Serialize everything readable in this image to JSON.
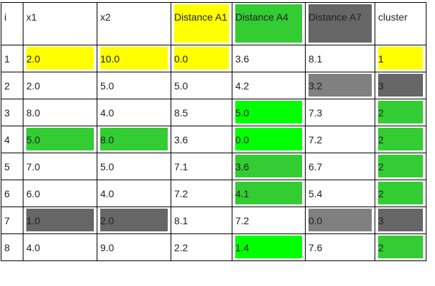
{
  "colors": {
    "yellow": "#ffff00",
    "green_bright": "#00ff00",
    "green_medium": "#33cc33",
    "gray_dark": "#666666",
    "gray_medium": "#808080",
    "white": "#ffffff"
  },
  "columns": [
    "i",
    "x1",
    "x2",
    "Distance A1",
    "Distance A4",
    "Distance A7",
    "cluster"
  ],
  "header_colors": [
    "white",
    "white",
    "white",
    "yellow",
    "green_medium",
    "gray_dark",
    "white"
  ],
  "rows": [
    {
      "values": [
        "1",
        "2.0",
        "10.0",
        "0.0",
        "3.6",
        "8.1",
        "1"
      ],
      "colors": [
        "white",
        "yellow",
        "yellow",
        "yellow",
        "white",
        "white",
        "yellow"
      ]
    },
    {
      "values": [
        "2",
        "2.0",
        "5.0",
        "5.0",
        "4.2",
        "3.2",
        "3"
      ],
      "colors": [
        "white",
        "white",
        "white",
        "white",
        "white",
        "gray_medium",
        "gray_dark"
      ]
    },
    {
      "values": [
        "3",
        "8.0",
        "4.0",
        "8.5",
        "5.0",
        "7.3",
        "2"
      ],
      "colors": [
        "white",
        "white",
        "white",
        "white",
        "green_bright",
        "white",
        "green_medium"
      ]
    },
    {
      "values": [
        "4",
        "5.0",
        "8.0",
        "3.6",
        "0.0",
        "7.2",
        "2"
      ],
      "colors": [
        "white",
        "green_medium",
        "green_medium",
        "white",
        "green_bright",
        "white",
        "green_medium"
      ]
    },
    {
      "values": [
        "5",
        "7.0",
        "5.0",
        "7.1",
        "3.6",
        "6.7",
        "2"
      ],
      "colors": [
        "white",
        "white",
        "white",
        "white",
        "green_medium",
        "white",
        "green_medium"
      ]
    },
    {
      "values": [
        "6",
        "6.0",
        "4.0",
        "7.2",
        "4.1",
        "5.4",
        "2"
      ],
      "colors": [
        "white",
        "white",
        "white",
        "white",
        "green_medium",
        "white",
        "green_medium"
      ]
    },
    {
      "values": [
        "7",
        "1.0",
        "2.0",
        "8.1",
        "7.2",
        "0.0",
        "3"
      ],
      "colors": [
        "white",
        "gray_dark",
        "gray_dark",
        "white",
        "white",
        "gray_medium",
        "gray_dark"
      ]
    },
    {
      "values": [
        "8",
        "4.0",
        "9.0",
        "2.2",
        "1.4",
        "7.6",
        "2"
      ],
      "colors": [
        "white",
        "white",
        "white",
        "white",
        "green_bright",
        "white",
        "green_medium"
      ]
    }
  ]
}
